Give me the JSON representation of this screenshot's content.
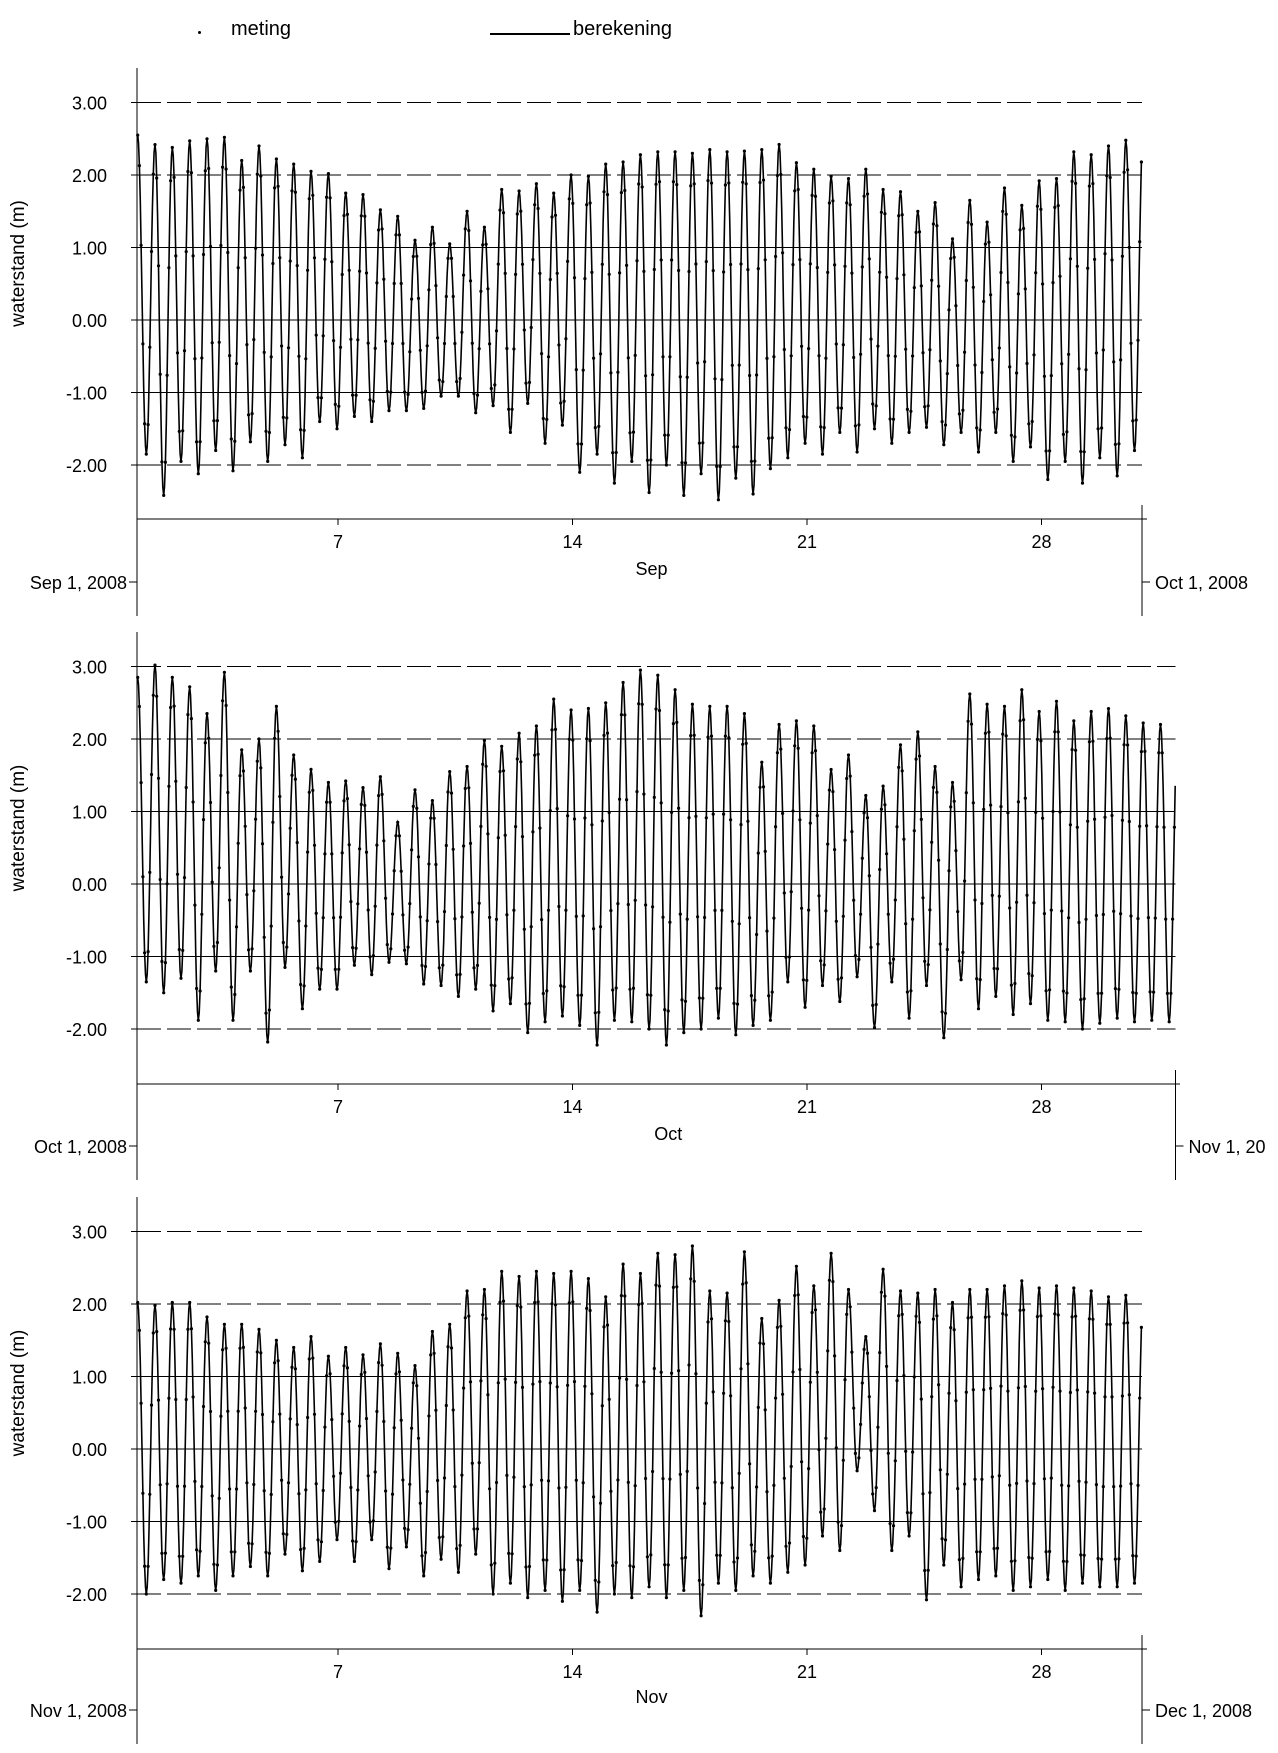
{
  "legend": {
    "meting_label": "meting",
    "berekening_label": "berekening"
  },
  "chart_data": [
    {
      "type": "line",
      "month": "Sep",
      "xlabel": "Sep",
      "ylabel": "waterstand (m)",
      "start_label": "Sep 1, 2008",
      "end_label": "Oct 1, 2008",
      "days": 30,
      "xlim": [
        "2008-09-01",
        "2008-10-01"
      ],
      "ylim": [
        -2.8,
        3.5
      ],
      "yticks": [
        3.0,
        2.0,
        1.0,
        0.0,
        -1.0,
        -2.0
      ],
      "ytick_labels": [
        "3.00",
        "2.00",
        "1.00",
        "0.00",
        "-1.00",
        "-2.00"
      ],
      "xticks": [
        7,
        14,
        21,
        28
      ],
      "xtick_labels": [
        "7",
        "14",
        "21",
        "28"
      ],
      "tide_cycle_hours": 12.42,
      "high_water_m": [
        2.55,
        2.42,
        2.38,
        2.47,
        2.5,
        2.52,
        2.2,
        2.4,
        2.22,
        2.15,
        2.05,
        2.02,
        1.75,
        1.73,
        1.52,
        1.43,
        1.1,
        1.28,
        1.05,
        1.5,
        1.28,
        1.8,
        1.78,
        1.88,
        1.75,
        2.0,
        1.98,
        2.15,
        2.18,
        2.28,
        2.32,
        2.32,
        2.3,
        2.35,
        2.32,
        2.33,
        2.35,
        2.42,
        2.17,
        2.08,
        1.98,
        1.95,
        2.08,
        1.8,
        1.77,
        1.5,
        1.62,
        1.12,
        1.65,
        1.35,
        1.82,
        1.58,
        1.92,
        1.95,
        2.32,
        2.28,
        2.4,
        2.48,
        2.6,
        2.8
      ],
      "low_water_m": [
        -1.85,
        -2.42,
        -1.95,
        -2.12,
        -1.8,
        -2.08,
        -1.68,
        -1.95,
        -1.72,
        -1.9,
        -1.4,
        -1.5,
        -1.33,
        -1.4,
        -1.25,
        -1.25,
        -1.22,
        -1.05,
        -1.05,
        -1.28,
        -1.18,
        -1.55,
        -1.15,
        -1.7,
        -1.45,
        -2.1,
        -1.85,
        -2.25,
        -1.95,
        -2.38,
        -2.0,
        -2.42,
        -2.12,
        -2.48,
        -2.18,
        -2.4,
        -2.05,
        -1.9,
        -1.7,
        -1.85,
        -1.55,
        -1.82,
        -1.5,
        -1.7,
        -1.55,
        -1.48,
        -1.72,
        -1.55,
        -1.82,
        -1.55,
        -1.95,
        -1.75,
        -2.2,
        -1.95,
        -2.25,
        -1.9,
        -2.15,
        -1.8,
        -1.55,
        -1.6
      ],
      "series": [
        {
          "name": "meting",
          "style": "dots"
        },
        {
          "name": "berekening",
          "style": "line"
        }
      ]
    },
    {
      "type": "line",
      "month": "Oct",
      "xlabel": "Oct",
      "ylabel": "waterstand (m)",
      "start_label": "Oct 1, 2008",
      "end_label": "Nov 1, 20",
      "days": 31,
      "xlim": [
        "2008-10-01",
        "2008-11-01"
      ],
      "ylim": [
        -2.8,
        3.5
      ],
      "yticks": [
        3.0,
        2.0,
        1.0,
        0.0,
        -1.0,
        -2.0
      ],
      "ytick_labels": [
        "3.00",
        "2.00",
        "1.00",
        "0.00",
        "-1.00",
        "-2.00"
      ],
      "xticks": [
        7,
        14,
        21,
        28
      ],
      "xtick_labels": [
        "7",
        "14",
        "21",
        "28"
      ],
      "tide_cycle_hours": 12.42,
      "high_water_m": [
        2.85,
        3.02,
        2.85,
        2.72,
        2.35,
        2.92,
        1.85,
        2.0,
        2.45,
        1.78,
        1.58,
        1.4,
        1.42,
        1.33,
        1.48,
        0.85,
        1.3,
        1.15,
        1.55,
        1.62,
        1.98,
        1.9,
        2.08,
        2.18,
        2.55,
        2.4,
        2.42,
        2.5,
        2.78,
        2.95,
        2.88,
        2.68,
        2.48,
        2.45,
        2.45,
        2.35,
        1.68,
        2.2,
        2.25,
        2.18,
        1.58,
        1.78,
        1.22,
        1.35,
        1.92,
        2.1,
        1.62,
        1.4,
        2.62,
        2.48,
        2.45,
        2.68,
        2.38,
        2.52,
        2.25,
        2.38,
        2.42,
        2.32,
        2.22,
        2.2,
        2.2
      ],
      "low_water_m": [
        -1.35,
        -1.5,
        -1.3,
        -1.88,
        -1.2,
        -1.88,
        -1.2,
        -2.18,
        -1.15,
        -1.72,
        -1.45,
        -1.45,
        -1.12,
        -1.25,
        -1.08,
        -1.1,
        -1.38,
        -1.4,
        -1.55,
        -1.45,
        -1.75,
        -1.65,
        -2.05,
        -1.9,
        -1.82,
        -1.95,
        -2.22,
        -1.88,
        -1.9,
        -2.0,
        -2.22,
        -2.05,
        -2.0,
        -1.85,
        -2.08,
        -1.95,
        -1.88,
        -1.35,
        -1.7,
        -1.4,
        -1.62,
        -1.28,
        -1.98,
        -1.35,
        -1.85,
        -1.4,
        -2.12,
        -1.32,
        -1.72,
        -1.55,
        -1.8,
        -1.65,
        -1.88,
        -1.9,
        -2.0,
        -1.92,
        -1.85,
        -1.9,
        -1.88,
        -1.9,
        -1.88
      ],
      "series": [
        {
          "name": "meting",
          "style": "dots"
        },
        {
          "name": "berekening",
          "style": "line"
        }
      ]
    },
    {
      "type": "line",
      "month": "Nov",
      "xlabel": "Nov",
      "ylabel": "waterstand (m)",
      "start_label": "Nov 1, 2008",
      "end_label": "Dec 1, 2008",
      "days": 30,
      "xlim": [
        "2008-11-01",
        "2008-12-01"
      ],
      "ylim": [
        -2.8,
        3.5
      ],
      "yticks": [
        3.0,
        2.0,
        1.0,
        0.0,
        -1.0,
        -2.0
      ],
      "ytick_labels": [
        "3.00",
        "2.00",
        "1.00",
        "0.00",
        "-1.00",
        "-2.00"
      ],
      "xticks": [
        7,
        14,
        21,
        28
      ],
      "xtick_labels": [
        "7",
        "14",
        "21",
        "28"
      ],
      "tide_cycle_hours": 12.42,
      "high_water_m": [
        2.02,
        1.98,
        2.02,
        2.02,
        1.82,
        1.72,
        1.72,
        1.65,
        1.5,
        1.4,
        1.55,
        1.28,
        1.4,
        1.3,
        1.45,
        1.32,
        1.15,
        1.62,
        1.72,
        2.18,
        2.2,
        2.45,
        2.38,
        2.45,
        2.42,
        2.45,
        2.35,
        2.1,
        2.55,
        2.42,
        2.7,
        2.68,
        2.8,
        2.18,
        2.15,
        2.72,
        1.8,
        2.05,
        2.52,
        2.25,
        2.7,
        2.2,
        1.55,
        2.48,
        2.18,
        2.15,
        2.2,
        2.02,
        2.2,
        2.2,
        2.25,
        2.32,
        2.22,
        2.25,
        2.22,
        2.18,
        2.1,
        2.12,
        2.05,
        1.98
      ],
      "low_water_m": [
        -2.0,
        -1.8,
        -1.85,
        -1.75,
        -1.95,
        -1.75,
        -1.62,
        -1.75,
        -1.45,
        -1.68,
        -1.55,
        -1.25,
        -1.55,
        -1.25,
        -1.65,
        -1.35,
        -1.75,
        -1.52,
        -1.7,
        -1.45,
        -2.0,
        -1.85,
        -2.05,
        -1.95,
        -2.1,
        -1.95,
        -2.25,
        -2.0,
        -2.05,
        -1.9,
        -2.05,
        -1.95,
        -2.3,
        -1.85,
        -1.95,
        -1.75,
        -1.85,
        -1.7,
        -1.6,
        -1.2,
        -1.4,
        -0.3,
        -0.85,
        -1.4,
        -1.2,
        -2.08,
        -1.6,
        -1.9,
        -1.8,
        -1.75,
        -1.95,
        -1.9,
        -1.8,
        -1.95,
        -1.85,
        -1.9,
        -1.9,
        -1.85,
        -1.75,
        -1.6
      ]
    }
  ]
}
